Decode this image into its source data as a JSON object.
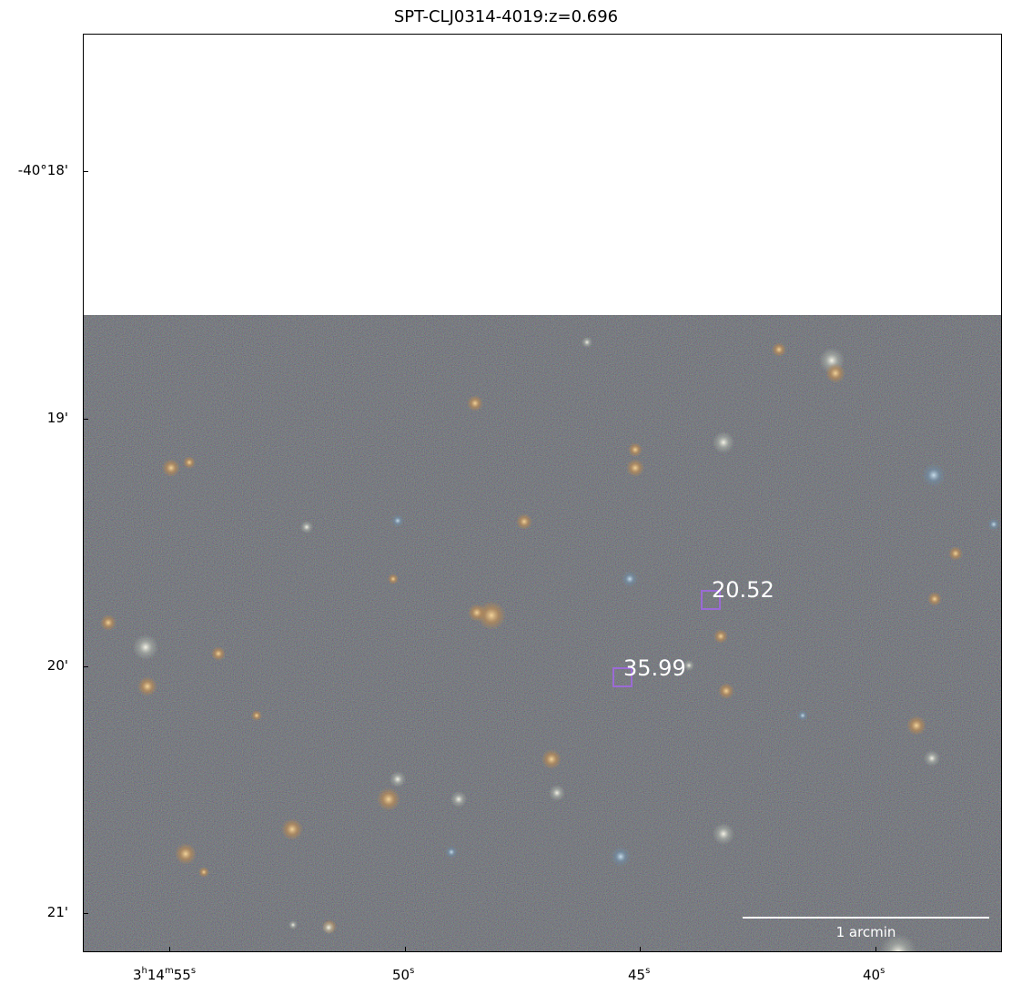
{
  "title": "SPT-CLJ0314-4019:z=0.696",
  "y_axis": {
    "ticks": [
      "-40°18'",
      "19'",
      "20'",
      "21'"
    ]
  },
  "x_axis": {
    "ticks": [
      {
        "main": "3",
        "sup1": "h",
        "mid": "14",
        "sup2": "m",
        "end": "55",
        "sup3": "s"
      },
      {
        "main": "50",
        "sup": "s"
      },
      {
        "main": "45",
        "sup": "s"
      },
      {
        "main": "40",
        "sup": "s"
      }
    ]
  },
  "markers": [
    {
      "label": "20.52"
    },
    {
      "label": "35.99"
    }
  ],
  "scalebar": {
    "label": "1 arcmin"
  },
  "colors": {
    "marker": "#9b6bd6",
    "background_sky": "#2a2a2a"
  }
}
